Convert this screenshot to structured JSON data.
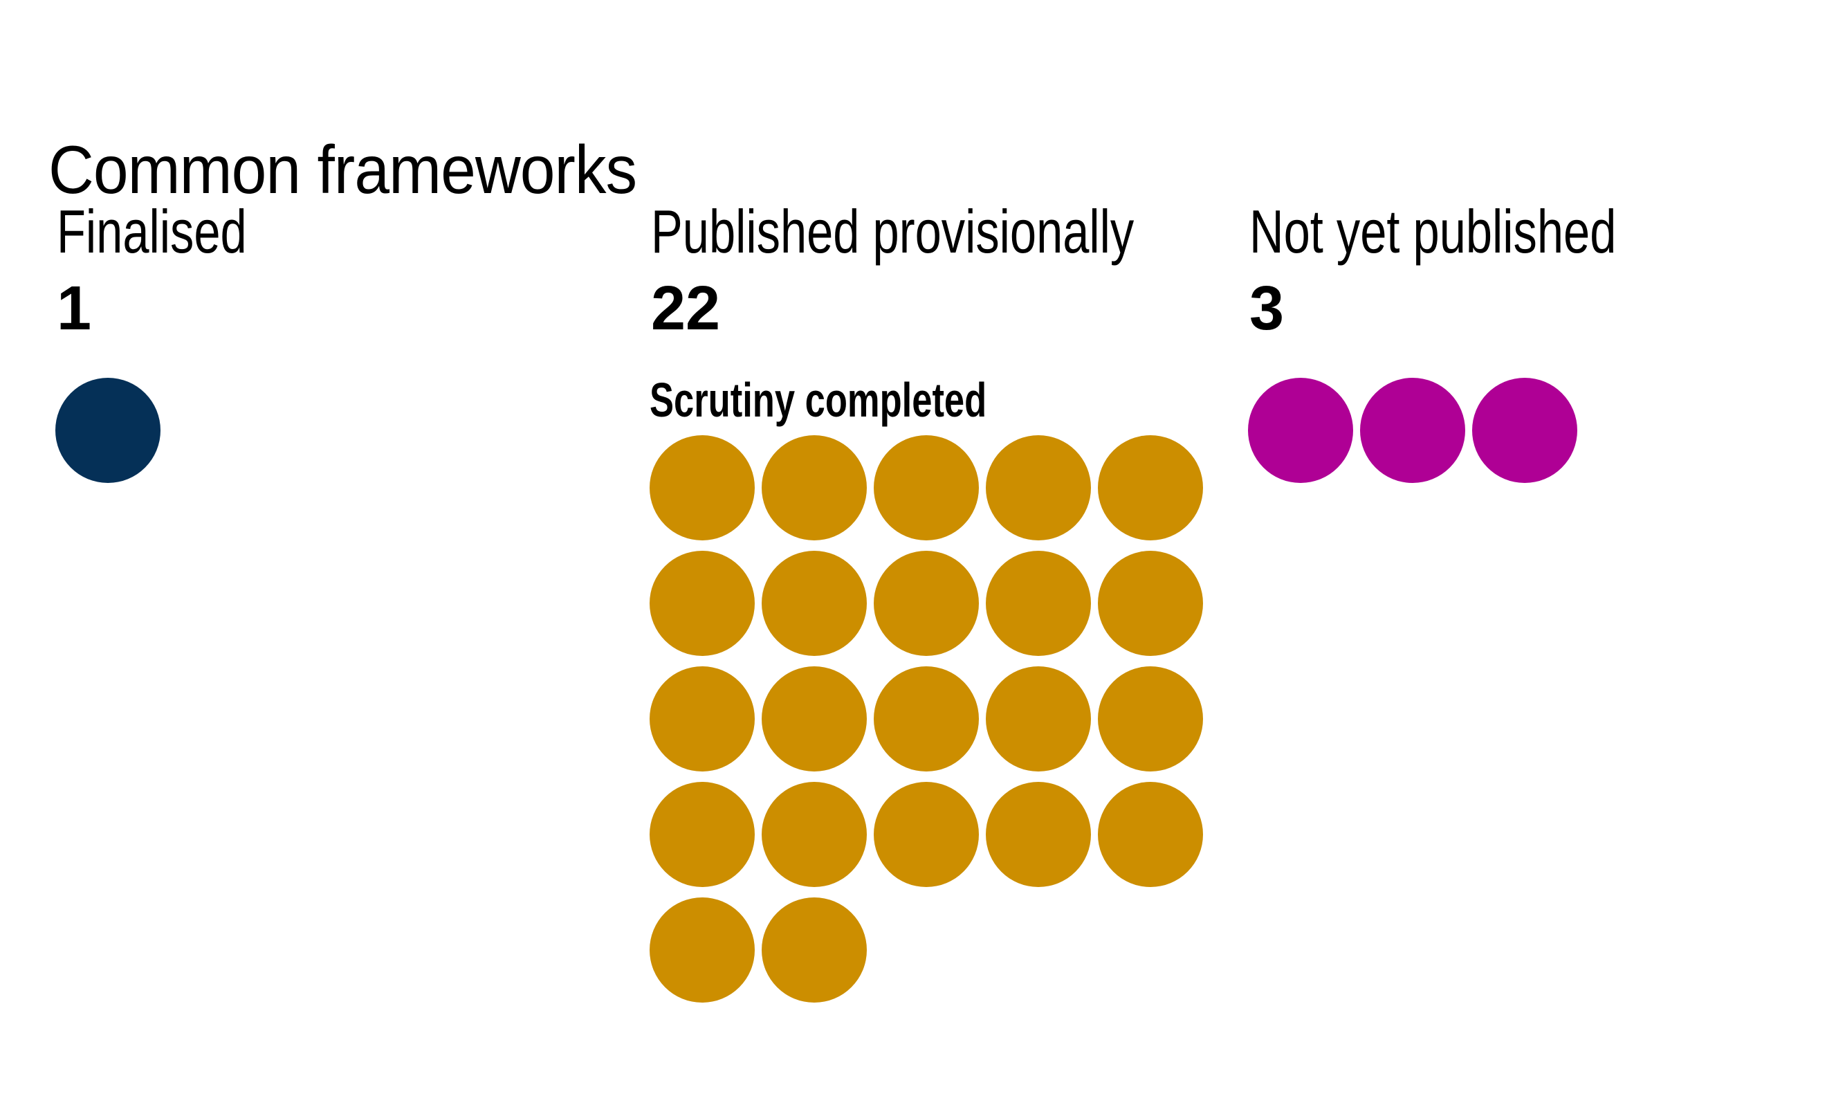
{
  "title": "Common frameworks",
  "categories": [
    {
      "id": "finalised",
      "label": "Finalised",
      "count": "1",
      "value": 1,
      "color": "#053057"
    },
    {
      "id": "published-provisionally",
      "label": "Published provisionally",
      "count": "22",
      "value": 22,
      "sublabel": "Scrutiny completed",
      "color": "#CC8E00"
    },
    {
      "id": "not-yet-published",
      "label": "Not yet published",
      "count": "3",
      "value": 3,
      "color": "#AF0095"
    }
  ],
  "chart_data": {
    "type": "pictogram",
    "title": "Common frameworks",
    "categories": [
      "Finalised",
      "Published provisionally",
      "Not yet published"
    ],
    "values": [
      1,
      22,
      3
    ],
    "annotations": {
      "Published provisionally": "Scrutiny completed"
    },
    "colors": [
      "#053057",
      "#CC8E00",
      "#AF0095"
    ],
    "layout": {
      "dots_per_row": 5,
      "grid": "off",
      "legend": "none",
      "one_dot_equals": 1
    }
  }
}
